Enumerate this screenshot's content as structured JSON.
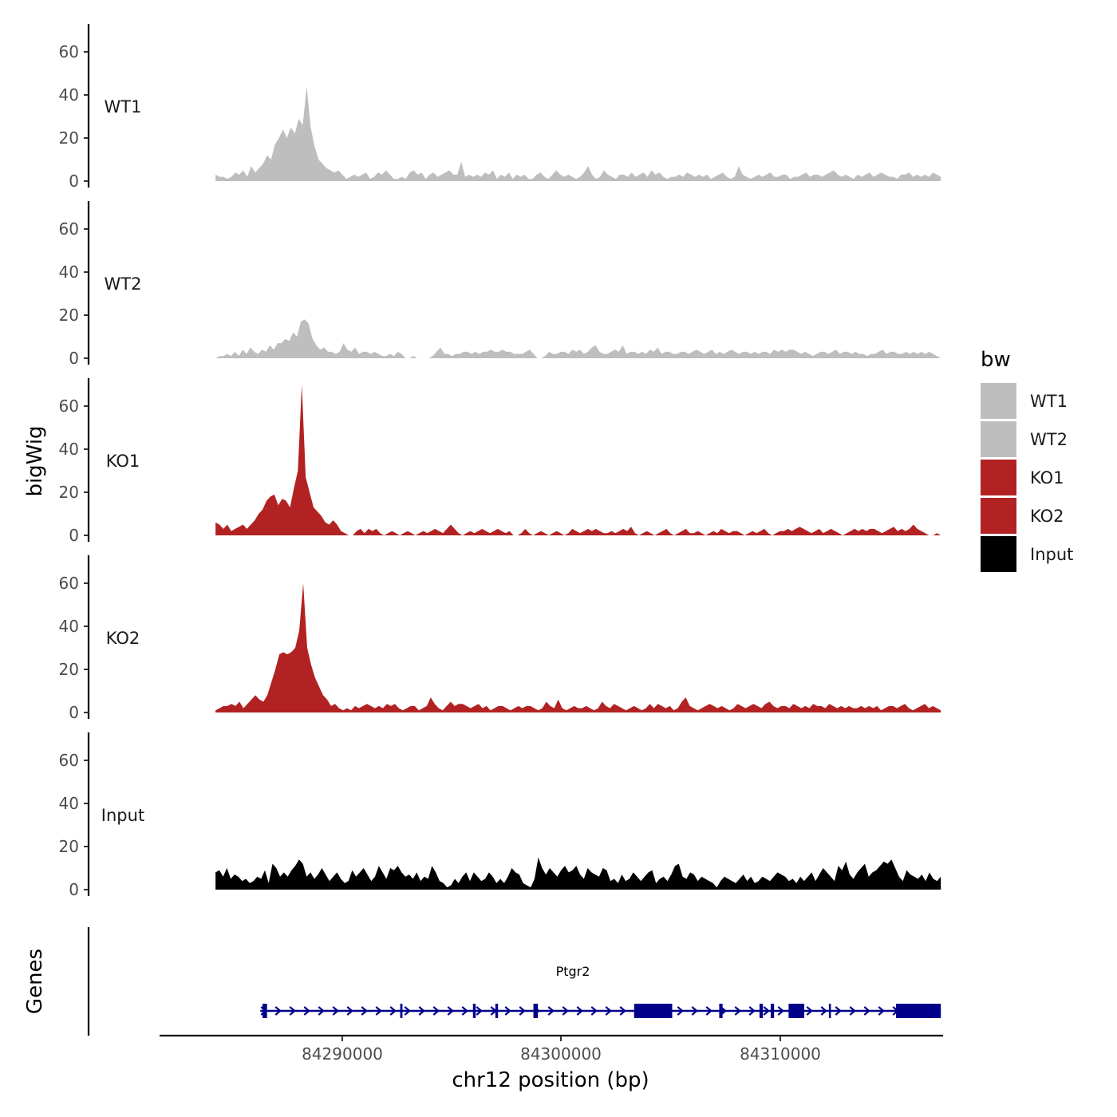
{
  "chart_data": {
    "type": "area",
    "title": "",
    "ylabel": "bigWig",
    "xlabel": "chr12 position (bp)",
    "xlim": [
      84281000,
      84316000
    ],
    "track_x_range": [
      84283500,
      84315900
    ],
    "ylim": [
      0,
      72
    ],
    "yticks": [
      0,
      20,
      40,
      60
    ],
    "xticks": [
      84290000,
      84300000,
      84310000
    ],
    "xtick_labels": [
      "84290000",
      "84300000",
      "84310000"
    ],
    "grid": false,
    "legend": {
      "title": "bw",
      "position": "right",
      "entries": [
        {
          "label": "WT1",
          "color": "#bebebe"
        },
        {
          "label": "WT2",
          "color": "#bebebe"
        },
        {
          "label": "KO1",
          "color": "#b22222"
        },
        {
          "label": "KO2",
          "color": "#b22222"
        },
        {
          "label": "Input",
          "color": "#000000"
        }
      ]
    },
    "series": [
      {
        "name": "WT1",
        "color": "#bebebe",
        "values": [
          3,
          2,
          2,
          1,
          2,
          4,
          3,
          5,
          2,
          7,
          4,
          6,
          8,
          12,
          10,
          17,
          20,
          24,
          20,
          25,
          22,
          29,
          26,
          44,
          25,
          16,
          10,
          8,
          6,
          5,
          4,
          5,
          3,
          1,
          2,
          3,
          2,
          3,
          4,
          1,
          2,
          4,
          3,
          5,
          3,
          1,
          1,
          2,
          1,
          4,
          5,
          3,
          4,
          1,
          3,
          4,
          2,
          3,
          4,
          5,
          3,
          3,
          9,
          2,
          3,
          2,
          3,
          2,
          4,
          3,
          5,
          1,
          3,
          2,
          4,
          1,
          3,
          2,
          3,
          1,
          1,
          3,
          4,
          2,
          1,
          3,
          5,
          3,
          2,
          3,
          2,
          1,
          2,
          4,
          7,
          3,
          1,
          2,
          5,
          3,
          2,
          1,
          3,
          3,
          2,
          4,
          2,
          3,
          4,
          2,
          5,
          3,
          4,
          2,
          1,
          2,
          2,
          3,
          2,
          4,
          3,
          2,
          3,
          2,
          3,
          1,
          2,
          3,
          4,
          2,
          1,
          2,
          7,
          3,
          2,
          1,
          2,
          3,
          2,
          3,
          4,
          2,
          2,
          3,
          3,
          1,
          2,
          2,
          3,
          4,
          2,
          3,
          3,
          2,
          3,
          4,
          5,
          3,
          2,
          3,
          2,
          1,
          3,
          2,
          3,
          4,
          2,
          3,
          4,
          3,
          2,
          2,
          1,
          3,
          3,
          4,
          2,
          3,
          2,
          3,
          2,
          4,
          3,
          2
        ]
      },
      {
        "name": "WT2",
        "color": "#bebebe",
        "values": [
          0,
          1,
          1,
          2,
          1,
          3,
          1,
          4,
          2,
          5,
          3,
          2,
          4,
          3,
          6,
          4,
          7,
          7,
          9,
          8,
          12,
          10,
          17,
          18,
          16,
          9,
          6,
          4,
          5,
          3,
          3,
          2,
          3,
          7,
          4,
          3,
          5,
          2,
          3,
          3,
          2,
          3,
          2,
          1,
          1,
          2,
          1,
          3,
          2,
          0,
          0,
          1,
          0,
          0,
          0,
          0,
          1,
          3,
          5,
          2,
          2,
          1,
          2,
          2,
          3,
          3,
          2,
          3,
          2,
          3,
          3,
          4,
          3,
          3,
          4,
          3,
          3,
          2,
          2,
          2,
          3,
          4,
          2,
          0,
          0,
          1,
          3,
          2,
          2,
          3,
          3,
          2,
          4,
          3,
          4,
          2,
          3,
          5,
          6,
          3,
          2,
          2,
          3,
          4,
          3,
          6,
          2,
          3,
          3,
          2,
          3,
          2,
          4,
          3,
          5,
          2,
          3,
          3,
          2,
          2,
          3,
          3,
          2,
          3,
          4,
          3,
          2,
          3,
          4,
          2,
          3,
          2,
          3,
          4,
          3,
          2,
          3,
          3,
          2,
          3,
          2,
          3,
          3,
          2,
          4,
          3,
          4,
          3,
          4,
          4,
          3,
          2,
          3,
          2,
          1,
          2,
          3,
          3,
          2,
          3,
          4,
          2,
          3,
          3,
          2,
          3,
          2,
          2,
          1,
          2,
          2,
          3,
          4,
          2,
          3,
          3,
          2,
          2,
          3,
          2,
          3,
          2,
          3,
          2,
          3,
          2,
          1,
          0
        ]
      },
      {
        "name": "KO1",
        "color": "#b22222",
        "values": [
          6,
          5,
          3,
          5,
          2,
          3,
          4,
          5,
          3,
          5,
          7,
          10,
          12,
          16,
          18,
          19,
          14,
          17,
          16,
          13,
          22,
          30,
          70,
          27,
          20,
          13,
          11,
          9,
          6,
          5,
          7,
          5,
          2,
          1,
          0,
          0,
          2,
          3,
          1,
          3,
          2,
          3,
          1,
          0,
          1,
          2,
          1,
          0,
          1,
          2,
          1,
          0,
          1,
          2,
          1,
          2,
          3,
          2,
          1,
          3,
          5,
          3,
          1,
          0,
          1,
          2,
          1,
          2,
          3,
          2,
          1,
          2,
          3,
          2,
          1,
          2,
          0,
          0,
          1,
          3,
          1,
          0,
          1,
          2,
          1,
          0,
          1,
          2,
          1,
          0,
          1,
          3,
          2,
          1,
          2,
          3,
          2,
          3,
          2,
          1,
          1,
          2,
          1,
          2,
          3,
          2,
          4,
          1,
          0,
          1,
          2,
          1,
          0,
          1,
          2,
          3,
          1,
          0,
          1,
          2,
          3,
          1,
          1,
          2,
          1,
          0,
          1,
          2,
          1,
          3,
          2,
          1,
          2,
          2,
          1,
          0,
          1,
          2,
          1,
          2,
          3,
          1,
          0,
          1,
          2,
          2,
          3,
          2,
          3,
          4,
          3,
          2,
          1,
          2,
          3,
          1,
          2,
          3,
          2,
          1,
          0,
          1,
          2,
          3,
          2,
          3,
          2,
          3,
          3,
          2,
          1,
          2,
          3,
          4,
          2,
          3,
          2,
          3,
          5,
          3,
          2,
          1,
          0,
          0,
          1,
          0
        ]
      },
      {
        "name": "KO2",
        "color": "#b22222",
        "values": [
          1,
          2,
          3,
          3,
          4,
          3,
          5,
          2,
          4,
          6,
          8,
          6,
          5,
          8,
          14,
          20,
          27,
          28,
          27,
          28,
          30,
          38,
          60,
          30,
          22,
          16,
          12,
          8,
          6,
          3,
          4,
          2,
          1,
          2,
          1,
          3,
          2,
          3,
          4,
          3,
          2,
          3,
          2,
          4,
          3,
          4,
          2,
          1,
          2,
          3,
          3,
          1,
          2,
          3,
          7,
          4,
          2,
          1,
          3,
          5,
          3,
          4,
          4,
          3,
          2,
          3,
          4,
          2,
          3,
          1,
          2,
          3,
          3,
          2,
          1,
          2,
          3,
          2,
          3,
          3,
          2,
          1,
          2,
          5,
          3,
          2,
          6,
          2,
          1,
          2,
          3,
          2,
          2,
          3,
          2,
          1,
          2,
          5,
          3,
          2,
          4,
          3,
          2,
          1,
          2,
          3,
          2,
          1,
          2,
          4,
          2,
          4,
          3,
          2,
          3,
          1,
          2,
          5,
          7,
          3,
          2,
          1,
          2,
          3,
          4,
          3,
          2,
          3,
          2,
          1,
          2,
          4,
          3,
          2,
          3,
          4,
          3,
          2,
          4,
          5,
          3,
          2,
          3,
          3,
          2,
          4,
          3,
          2,
          3,
          2,
          4,
          3,
          3,
          2,
          4,
          3,
          2,
          3,
          2,
          3,
          2,
          2,
          3,
          2,
          3,
          2,
          3,
          1,
          2,
          3,
          3,
          2,
          3,
          4,
          2,
          1,
          2,
          3,
          4,
          2,
          3,
          2,
          1
        ]
      },
      {
        "name": "Input",
        "color": "#000000",
        "values": [
          8,
          9,
          6,
          10,
          5,
          7,
          6,
          4,
          5,
          3,
          4,
          6,
          5,
          9,
          3,
          12,
          10,
          6,
          8,
          6,
          9,
          11,
          14,
          12,
          6,
          8,
          5,
          7,
          10,
          7,
          4,
          6,
          8,
          5,
          3,
          4,
          9,
          6,
          8,
          10,
          7,
          4,
          6,
          11,
          8,
          5,
          10,
          9,
          11,
          8,
          6,
          7,
          5,
          8,
          4,
          6,
          5,
          11,
          8,
          4,
          3,
          1,
          2,
          5,
          3,
          6,
          8,
          4,
          8,
          6,
          4,
          5,
          8,
          6,
          3,
          5,
          3,
          6,
          10,
          8,
          7,
          3,
          2,
          1,
          5,
          15,
          10,
          7,
          10,
          8,
          6,
          9,
          11,
          8,
          9,
          11,
          7,
          5,
          10,
          8,
          7,
          6,
          10,
          9,
          4,
          5,
          3,
          7,
          4,
          5,
          8,
          6,
          4,
          6,
          8,
          9,
          3,
          5,
          6,
          4,
          7,
          11,
          12,
          6,
          5,
          8,
          7,
          4,
          6,
          5,
          4,
          3,
          1,
          4,
          6,
          5,
          4,
          3,
          5,
          7,
          4,
          6,
          3,
          4,
          6,
          5,
          4,
          6,
          8,
          7,
          6,
          4,
          5,
          3,
          6,
          4,
          6,
          8,
          4,
          7,
          10,
          8,
          6,
          4,
          11,
          9,
          13,
          7,
          5,
          8,
          10,
          12,
          6,
          8,
          9,
          11,
          13,
          12,
          14,
          10,
          6,
          4,
          9,
          7,
          6,
          5,
          7,
          4,
          8,
          5,
          4,
          6
        ]
      }
    ],
    "genes": {
      "title": "Genes",
      "name": "Ptgr2",
      "strand": "+",
      "start": 84285500,
      "end": 84315900,
      "exons": [
        [
          84285600,
          84285800
        ],
        [
          84291750,
          84291850
        ],
        [
          84295000,
          84295120
        ],
        [
          84296000,
          84296120
        ],
        [
          84297700,
          84297900
        ],
        [
          84302200,
          84303900
        ],
        [
          84306000,
          84306150
        ],
        [
          84307800,
          84307950
        ],
        [
          84308300,
          84308450
        ],
        [
          84309100,
          84309800
        ],
        [
          84310900,
          84310960
        ],
        [
          84313900,
          84315900
        ]
      ]
    }
  }
}
